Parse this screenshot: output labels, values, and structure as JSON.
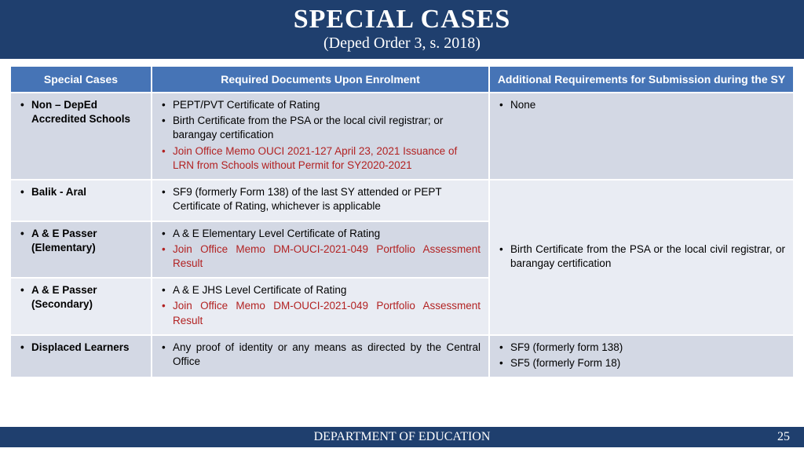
{
  "header": {
    "title": "SPECIAL CASES",
    "subtitle": "(Deped Order  3, s. 2018)"
  },
  "columns": {
    "c1": "Special Cases",
    "c2": "Required Documents Upon Enrolment",
    "c3": "Additional Requirements for Submission during the SY"
  },
  "rows": {
    "r1": {
      "case": "Non – DepEd Accredited Schools",
      "docs": {
        "d1": "PEPT/PVT Certificate of Rating",
        "d2": "Birth Certificate from the PSA or the local civil registrar; or barangay certification",
        "d3": "Join Office Memo OUCI 2021-127 April 23, 2021 Issuance of LRN from Schools without Permit for SY2020-2021"
      },
      "addl": {
        "a1": "None"
      }
    },
    "r2": {
      "case": "Balik - Aral",
      "docs": {
        "d1": "SF9 (formerly Form 138) of the last SY attended or PEPT Certificate of Rating, whichever is applicable"
      }
    },
    "merged_addl": {
      "a1": "Birth Certificate from the PSA or the local civil registrar, or barangay certification"
    },
    "r3": {
      "case": "A & E Passer (Elementary)",
      "docs": {
        "d1": "A & E Elementary Level Certificate of Rating",
        "d2": "Join Office Memo DM-OUCI-2021-049 Portfolio Assessment Result"
      }
    },
    "r4": {
      "case": "A & E Passer (Secondary)",
      "docs": {
        "d1": "A & E JHS Level Certificate of Rating",
        "d2": "Join Office Memo DM-OUCI-2021-049 Portfolio Assessment Result"
      }
    },
    "r5": {
      "case": "Displaced Learners",
      "docs": {
        "d1": "Any proof of identity or any means as directed by the Central Office"
      },
      "addl": {
        "a1": "SF9 (formerly form 138)",
        "a2": "SF5 (formerly Form 18)"
      }
    }
  },
  "footer": {
    "dept": "DEPARTMENT OF EDUCATION",
    "page": "25"
  },
  "colors": {
    "header_bg": "#1f3f6e",
    "th_bg": "#4674b6",
    "row_even": "#d3d8e4",
    "row_odd": "#e9ecf3",
    "red": "#b22222"
  }
}
